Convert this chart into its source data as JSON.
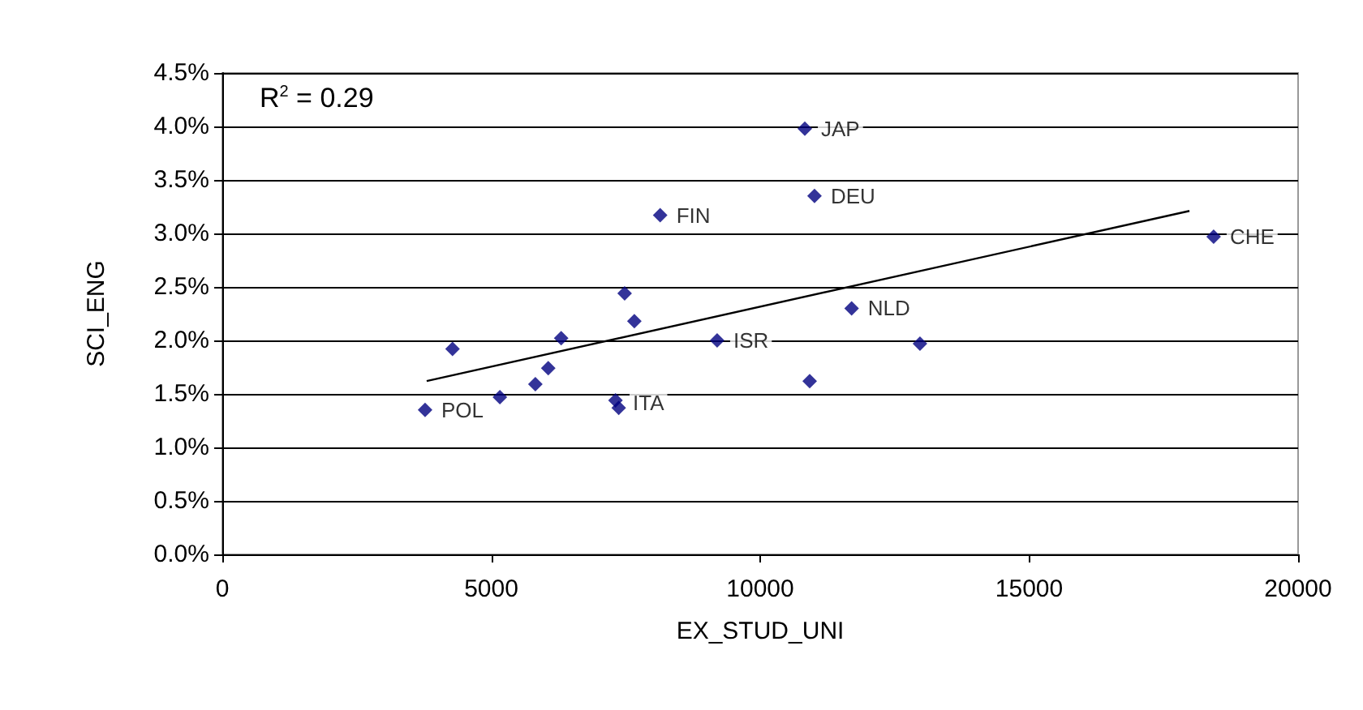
{
  "chart_data": {
    "type": "scatter",
    "xlabel": "EX_STUD_UNI",
    "ylabel": "SCI_ENG",
    "marker": "diamond",
    "grid": "y",
    "xlim": [
      0,
      20000
    ],
    "xticks": [
      0,
      5000,
      10000,
      15000,
      20000
    ],
    "ylim": [
      0,
      4.5
    ],
    "yticks": [
      {
        "value": 0,
        "label": "0.0%"
      },
      {
        "value": 0.5,
        "label": "0.5%"
      },
      {
        "value": 1,
        "label": "1.0%"
      },
      {
        "value": 1.5,
        "label": "1.5%"
      },
      {
        "value": 2,
        "label": "2.0%"
      },
      {
        "value": 2.5,
        "label": "2.5%"
      },
      {
        "value": 3,
        "label": "3.0%"
      },
      {
        "value": 3.5,
        "label": "3.5%"
      },
      {
        "value": 4,
        "label": "4.0%"
      },
      {
        "value": 4.5,
        "label": "4.5%"
      }
    ],
    "x": [
      3770,
      4280,
      5160,
      5820,
      6060,
      6300,
      7480,
      7660,
      7310,
      7370,
      8140,
      9200,
      10830,
      11010,
      10920,
      11700,
      12970,
      18430
    ],
    "series": [
      {
        "color": "#000080",
        "values": [
          1.35,
          1.92,
          1.47,
          1.59,
          1.74,
          2.02,
          2.44,
          2.18,
          1.44,
          1.37,
          3.17,
          2.0,
          3.98,
          3.35,
          1.62,
          2.3,
          1.97,
          2.97
        ]
      },
      {
        "type": "line",
        "marker": "none",
        "color": "#000000",
        "x": [
          3800,
          17980
        ],
        "values": [
          1.62,
          3.21
        ]
      }
    ],
    "annotations": [
      "R$^{2}$ = 0.29",
      {
        "text": "POL",
        "x": 3770,
        "y": 1.35
      },
      {
        "text": "ITA",
        "x": 7330,
        "y": 1.42
      },
      {
        "text": "FIN",
        "x": 8140,
        "y": 3.17
      },
      {
        "text": "ISR",
        "x": 9200,
        "y": 2.0
      },
      {
        "text": "JAP",
        "x": 10830,
        "y": 3.98
      },
      {
        "text": "DEU",
        "x": 11010,
        "y": 3.35
      },
      {
        "text": "NLD",
        "x": 11700,
        "y": 2.3
      },
      {
        "text": "CHE",
        "x": 18430,
        "y": 2.97
      }
    ]
  }
}
